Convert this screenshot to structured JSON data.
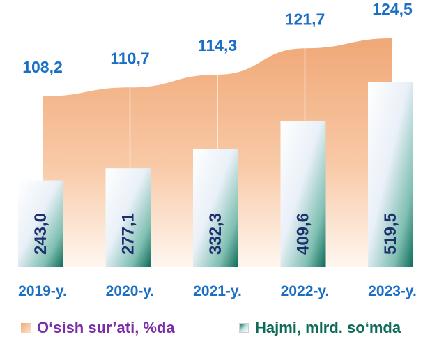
{
  "chart_data": {
    "type": "bar",
    "categories": [
      "2019-y.",
      "2020-y.",
      "2021-y.",
      "2022-y.",
      "2023-y."
    ],
    "series": [
      {
        "name": "O‘sish sur’ati, %da",
        "type": "area",
        "values": [
          108.2,
          110.7,
          114.3,
          121.7,
          124.5
        ],
        "labels": [
          "108,2",
          "110,7",
          "114,3",
          "121,7",
          "124,5"
        ],
        "color": "#f0a877"
      },
      {
        "name": "Hajmi, mlrd. so‘mda",
        "type": "bar",
        "values": [
          243.0,
          277.1,
          332.3,
          409.6,
          519.5
        ],
        "labels": [
          "243,0",
          "277,1",
          "332,3",
          "409,6",
          "519,5"
        ],
        "color": "#0f6b59"
      }
    ],
    "title": "",
    "xlabel": "",
    "ylabel": "",
    "grid": false,
    "legend_position": "bottom",
    "colors": {
      "growth_label": "#1a6fc4",
      "volume_label": "#1f2f6e",
      "category_label": "#1a6fc4",
      "growth_legend_text": "#7b2fa6",
      "volume_legend_text": "#0f6b59"
    }
  }
}
